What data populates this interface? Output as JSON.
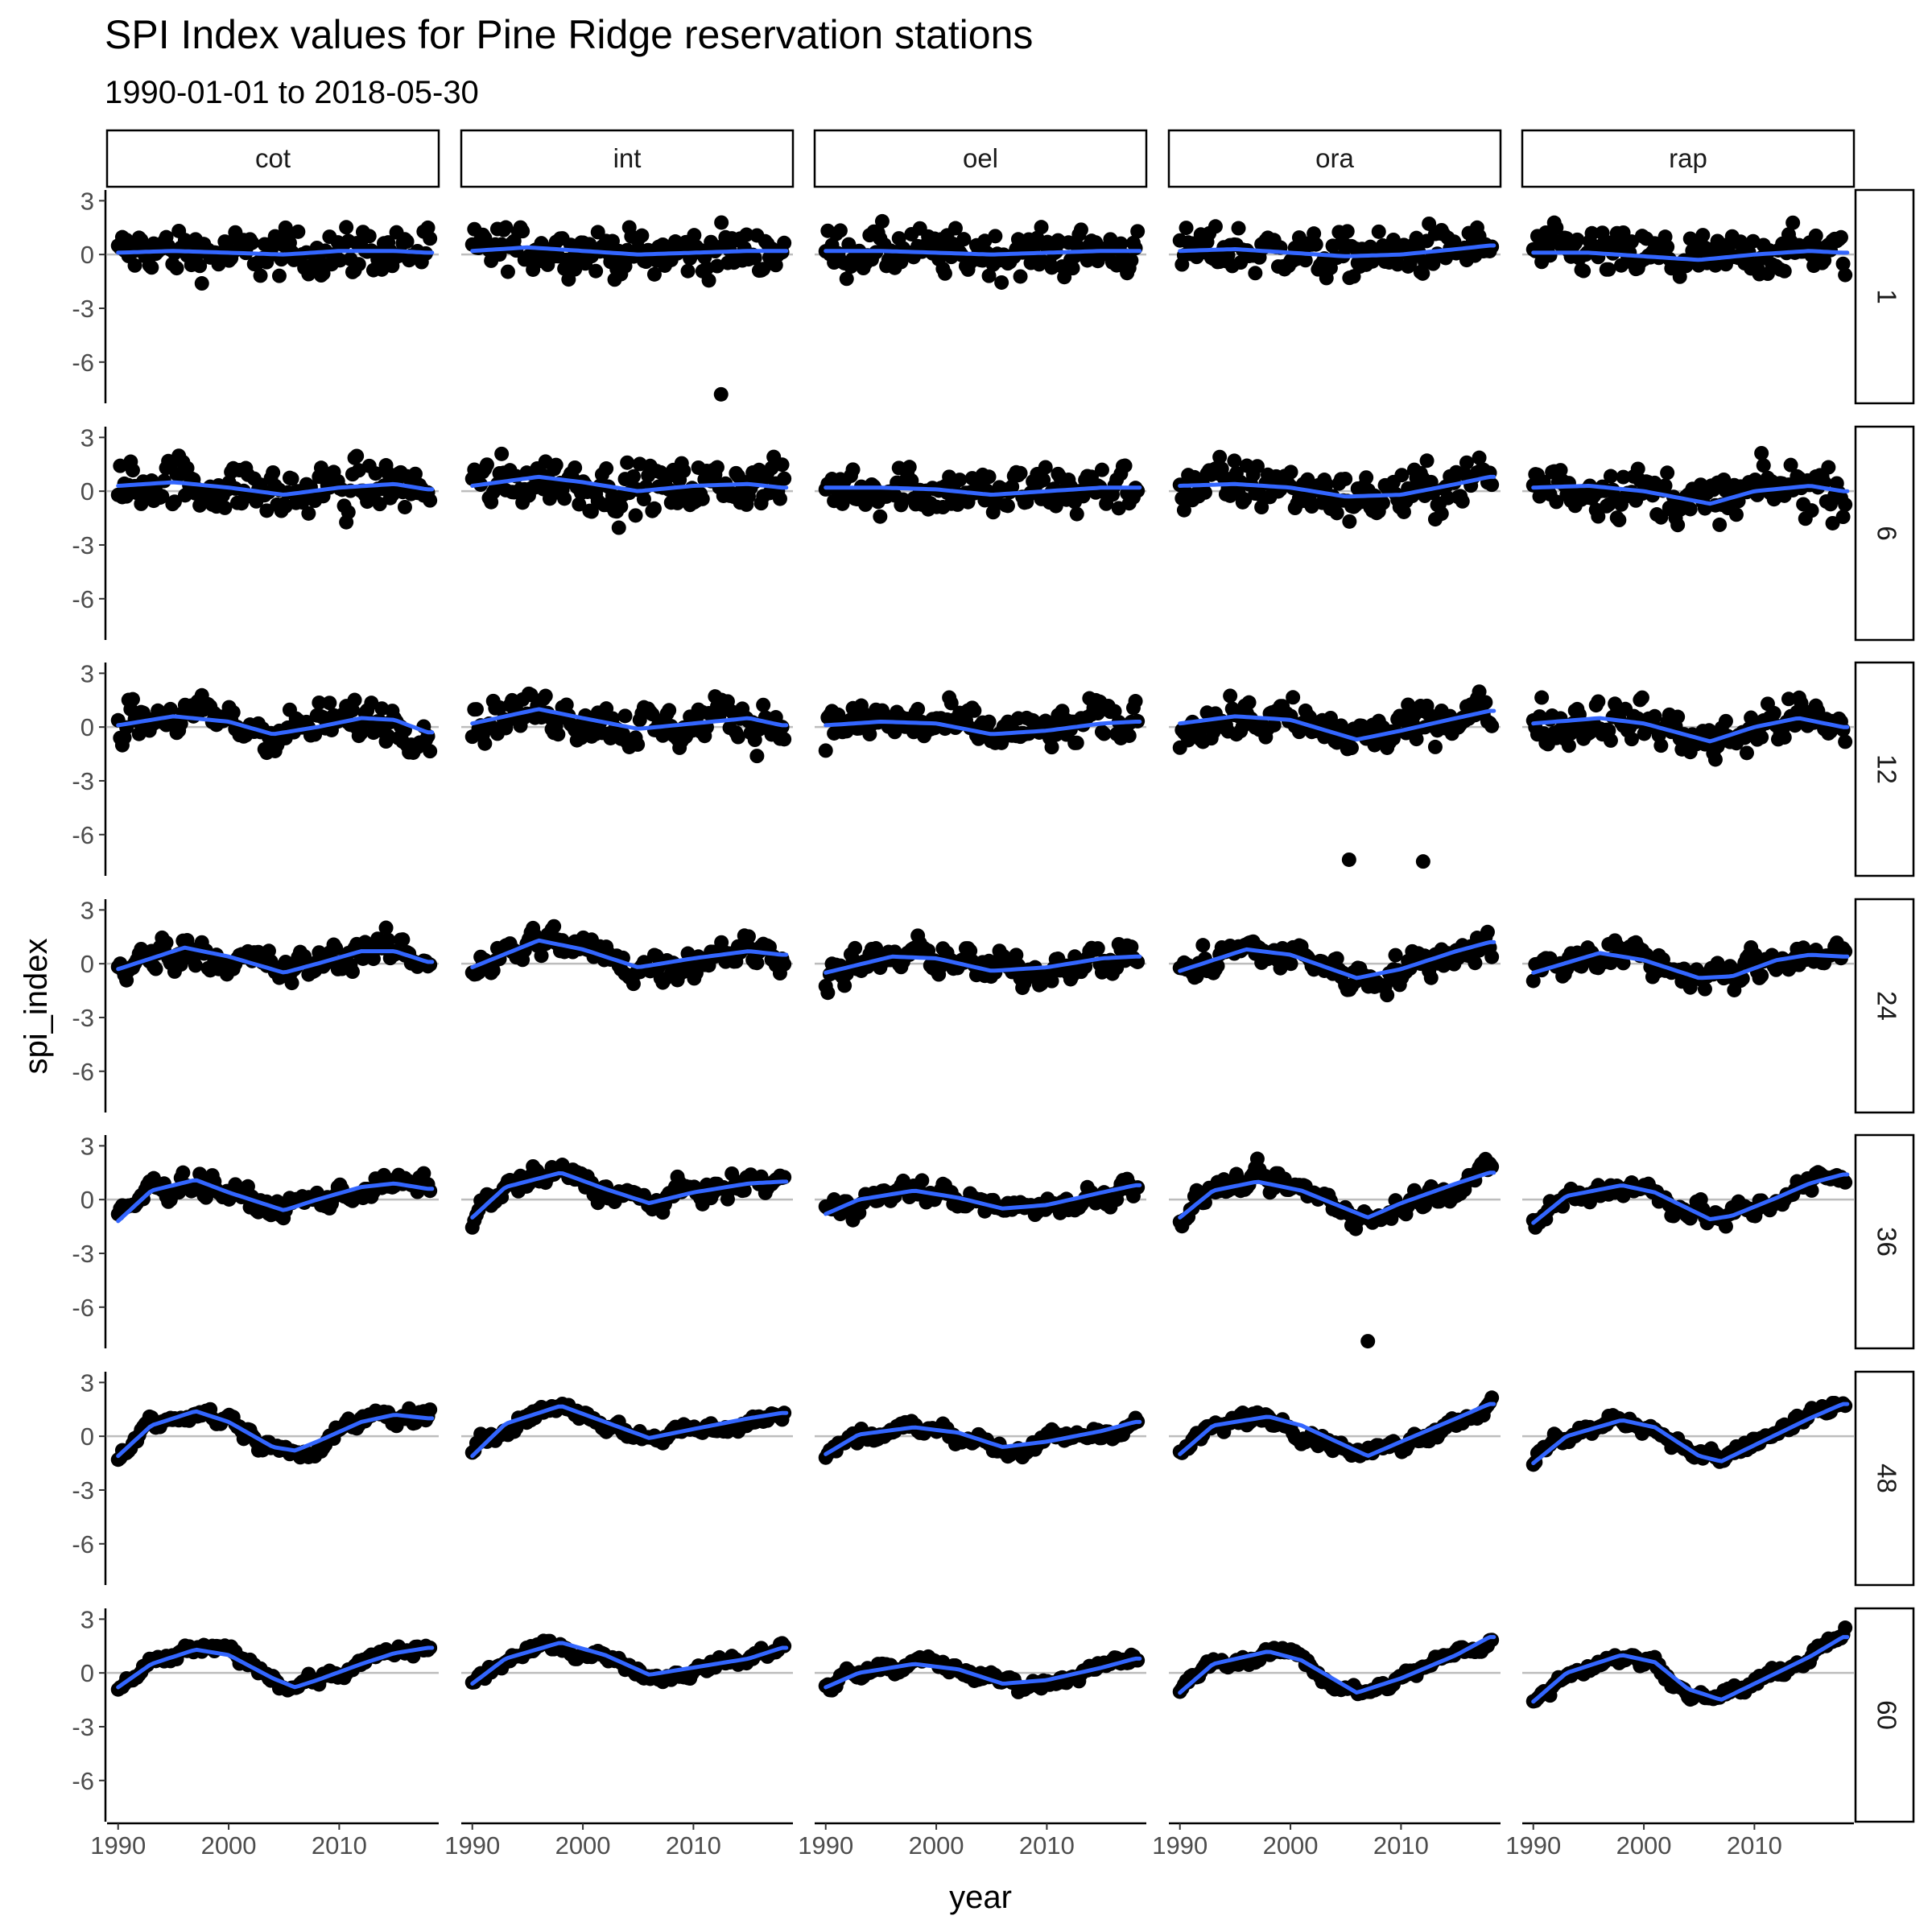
{
  "chart_data": {
    "type": "scatter",
    "title": "SPI Index values for Pine Ridge reservation stations",
    "subtitle": "1990-01-01 to 2018-05-30",
    "xlabel": "year",
    "ylabel": "spi_index",
    "xlim": [
      1989,
      2019
    ],
    "ylim": [
      -8.3,
      3.6
    ],
    "x_ticks": [
      1990,
      2000,
      2010
    ],
    "y_ticks": [
      3,
      0,
      -3,
      -6
    ],
    "reference_line_y": 0,
    "grid": false,
    "colors": {
      "points": "#000000",
      "smooth": "#3366ff",
      "reference": "#bdbdbd",
      "strip_border": "#000000"
    },
    "column_facets": [
      "cot",
      "int",
      "oel",
      "ora",
      "rap"
    ],
    "row_facets": [
      "1",
      "6",
      "12",
      "24",
      "36",
      "48",
      "60"
    ],
    "smooth_curves": {
      "1": {
        "cot": [
          [
            1990,
            0.1
          ],
          [
            1995,
            0.2
          ],
          [
            2000,
            0.1
          ],
          [
            2005,
            0.0
          ],
          [
            2010,
            0.2
          ],
          [
            2015,
            0.2
          ],
          [
            2018,
            0.1
          ]
        ],
        "int": [
          [
            1990,
            0.2
          ],
          [
            1995,
            0.4
          ],
          [
            2000,
            0.2
          ],
          [
            2005,
            0.0
          ],
          [
            2010,
            0.1
          ],
          [
            2015,
            0.2
          ],
          [
            2018,
            0.2
          ]
        ],
        "oel": [
          [
            1990,
            0.2
          ],
          [
            1995,
            0.2
          ],
          [
            2000,
            0.1
          ],
          [
            2005,
            0.0
          ],
          [
            2010,
            0.1
          ],
          [
            2015,
            0.2
          ],
          [
            2018,
            0.2
          ]
        ],
        "ora": [
          [
            1990,
            0.2
          ],
          [
            1995,
            0.3
          ],
          [
            2000,
            0.1
          ],
          [
            2005,
            -0.1
          ],
          [
            2010,
            0.0
          ],
          [
            2015,
            0.3
          ],
          [
            2018,
            0.5
          ]
        ],
        "rap": [
          [
            1990,
            0.1
          ],
          [
            1995,
            0.1
          ],
          [
            2000,
            -0.1
          ],
          [
            2005,
            -0.3
          ],
          [
            2010,
            0.0
          ],
          [
            2015,
            0.2
          ],
          [
            2018,
            0.1
          ]
        ]
      },
      "6": {
        "cot": [
          [
            1990,
            0.3
          ],
          [
            1995,
            0.5
          ],
          [
            2000,
            0.2
          ],
          [
            2005,
            -0.2
          ],
          [
            2010,
            0.2
          ],
          [
            2015,
            0.4
          ],
          [
            2018,
            0.1
          ]
        ],
        "int": [
          [
            1990,
            0.3
          ],
          [
            1996,
            0.8
          ],
          [
            2000,
            0.5
          ],
          [
            2005,
            0.0
          ],
          [
            2010,
            0.3
          ],
          [
            2015,
            0.4
          ],
          [
            2018,
            0.2
          ]
        ],
        "oel": [
          [
            1990,
            0.2
          ],
          [
            1995,
            0.2
          ],
          [
            2000,
            0.1
          ],
          [
            2005,
            -0.2
          ],
          [
            2010,
            0.0
          ],
          [
            2015,
            0.2
          ],
          [
            2018,
            0.2
          ]
        ],
        "ora": [
          [
            1990,
            0.3
          ],
          [
            1995,
            0.4
          ],
          [
            2000,
            0.2
          ],
          [
            2005,
            -0.3
          ],
          [
            2010,
            -0.2
          ],
          [
            2015,
            0.4
          ],
          [
            2018,
            0.8
          ]
        ],
        "rap": [
          [
            1990,
            0.2
          ],
          [
            1995,
            0.3
          ],
          [
            2000,
            0.0
          ],
          [
            2006,
            -0.7
          ],
          [
            2010,
            0.0
          ],
          [
            2015,
            0.3
          ],
          [
            2018,
            0.0
          ]
        ]
      },
      "12": {
        "cot": [
          [
            1990,
            0.1
          ],
          [
            1995,
            0.6
          ],
          [
            2000,
            0.3
          ],
          [
            2004,
            -0.4
          ],
          [
            2008,
            0.0
          ],
          [
            2012,
            0.5
          ],
          [
            2015,
            0.4
          ],
          [
            2018,
            -0.3
          ]
        ],
        "int": [
          [
            1990,
            0.2
          ],
          [
            1996,
            1.0
          ],
          [
            2000,
            0.5
          ],
          [
            2005,
            -0.1
          ],
          [
            2010,
            0.2
          ],
          [
            2015,
            0.5
          ],
          [
            2018,
            0.1
          ]
        ],
        "oel": [
          [
            1990,
            0.1
          ],
          [
            1995,
            0.3
          ],
          [
            2000,
            0.2
          ],
          [
            2005,
            -0.4
          ],
          [
            2010,
            -0.2
          ],
          [
            2015,
            0.2
          ],
          [
            2018,
            0.3
          ]
        ],
        "ora": [
          [
            1990,
            0.2
          ],
          [
            1995,
            0.6
          ],
          [
            2000,
            0.4
          ],
          [
            2006,
            -0.7
          ],
          [
            2010,
            -0.2
          ],
          [
            2015,
            0.5
          ],
          [
            2018,
            0.9
          ]
        ],
        "rap": [
          [
            1990,
            0.2
          ],
          [
            1996,
            0.5
          ],
          [
            2000,
            0.2
          ],
          [
            2006,
            -0.8
          ],
          [
            2010,
            0.0
          ],
          [
            2014,
            0.5
          ],
          [
            2018,
            0.0
          ]
        ]
      },
      "24": {
        "cot": [
          [
            1990,
            -0.3
          ],
          [
            1996,
            0.9
          ],
          [
            2000,
            0.4
          ],
          [
            2005,
            -0.5
          ],
          [
            2008,
            0.0
          ],
          [
            2012,
            0.7
          ],
          [
            2015,
            0.7
          ],
          [
            2018,
            0.1
          ]
        ],
        "int": [
          [
            1990,
            -0.2
          ],
          [
            1996,
            1.3
          ],
          [
            2000,
            0.8
          ],
          [
            2005,
            -0.2
          ],
          [
            2010,
            0.3
          ],
          [
            2015,
            0.7
          ],
          [
            2018,
            0.5
          ]
        ],
        "oel": [
          [
            1990,
            -0.5
          ],
          [
            1996,
            0.4
          ],
          [
            2000,
            0.3
          ],
          [
            2005,
            -0.4
          ],
          [
            2010,
            -0.2
          ],
          [
            2015,
            0.3
          ],
          [
            2018,
            0.4
          ]
        ],
        "ora": [
          [
            1990,
            -0.4
          ],
          [
            1996,
            0.8
          ],
          [
            2000,
            0.5
          ],
          [
            2006,
            -0.8
          ],
          [
            2010,
            -0.3
          ],
          [
            2015,
            0.7
          ],
          [
            2018,
            1.2
          ]
        ],
        "rap": [
          [
            1990,
            -0.5
          ],
          [
            1996,
            0.6
          ],
          [
            2000,
            0.2
          ],
          [
            2005,
            -0.8
          ],
          [
            2008,
            -0.7
          ],
          [
            2012,
            0.2
          ],
          [
            2015,
            0.5
          ],
          [
            2018,
            0.4
          ]
        ]
      },
      "36": {
        "cot": [
          [
            1990,
            -1.2
          ],
          [
            1993,
            0.5
          ],
          [
            1997,
            1.1
          ],
          [
            2000,
            0.4
          ],
          [
            2005,
            -0.6
          ],
          [
            2008,
            0.0
          ],
          [
            2012,
            0.7
          ],
          [
            2015,
            0.9
          ],
          [
            2018,
            0.6
          ]
        ],
        "int": [
          [
            1990,
            -1.0
          ],
          [
            1993,
            0.7
          ],
          [
            1998,
            1.5
          ],
          [
            2002,
            0.6
          ],
          [
            2006,
            -0.2
          ],
          [
            2010,
            0.4
          ],
          [
            2015,
            0.9
          ],
          [
            2018,
            1.0
          ]
        ],
        "oel": [
          [
            1990,
            -0.8
          ],
          [
            1993,
            0.0
          ],
          [
            1998,
            0.5
          ],
          [
            2002,
            0.1
          ],
          [
            2006,
            -0.5
          ],
          [
            2010,
            -0.3
          ],
          [
            2015,
            0.4
          ],
          [
            2018,
            0.8
          ]
        ],
        "ora": [
          [
            1990,
            -1.0
          ],
          [
            1993,
            0.5
          ],
          [
            1997,
            1.0
          ],
          [
            2001,
            0.5
          ],
          [
            2007,
            -1.0
          ],
          [
            2010,
            -0.2
          ],
          [
            2015,
            0.9
          ],
          [
            2018,
            1.5
          ]
        ],
        "rap": [
          [
            1990,
            -1.3
          ],
          [
            1993,
            0.2
          ],
          [
            1998,
            0.8
          ],
          [
            2001,
            0.4
          ],
          [
            2006,
            -1.1
          ],
          [
            2008,
            -0.9
          ],
          [
            2012,
            0.1
          ],
          [
            2015,
            0.9
          ],
          [
            2018,
            1.4
          ]
        ]
      },
      "48": {
        "cot": [
          [
            1990,
            -1.1
          ],
          [
            1993,
            0.6
          ],
          [
            1997,
            1.4
          ],
          [
            2000,
            0.8
          ],
          [
            2004,
            -0.6
          ],
          [
            2006,
            -0.8
          ],
          [
            2008,
            -0.3
          ],
          [
            2012,
            0.8
          ],
          [
            2015,
            1.2
          ],
          [
            2018,
            1.0
          ]
        ],
        "int": [
          [
            1990,
            -1.1
          ],
          [
            1993,
            0.7
          ],
          [
            1998,
            1.7
          ],
          [
            2002,
            0.8
          ],
          [
            2006,
            -0.1
          ],
          [
            2010,
            0.4
          ],
          [
            2015,
            1.0
          ],
          [
            2018,
            1.3
          ]
        ],
        "oel": [
          [
            1990,
            -1.0
          ],
          [
            1993,
            0.1
          ],
          [
            1998,
            0.5
          ],
          [
            2002,
            0.2
          ],
          [
            2006,
            -0.6
          ],
          [
            2010,
            -0.3
          ],
          [
            2015,
            0.3
          ],
          [
            2018,
            0.8
          ]
        ],
        "ora": [
          [
            1990,
            -1.0
          ],
          [
            1993,
            0.6
          ],
          [
            1998,
            1.1
          ],
          [
            2001,
            0.6
          ],
          [
            2007,
            -1.1
          ],
          [
            2010,
            -0.3
          ],
          [
            2015,
            1.0
          ],
          [
            2018,
            1.8
          ]
        ],
        "rap": [
          [
            1990,
            -1.5
          ],
          [
            1993,
            0.0
          ],
          [
            1998,
            0.9
          ],
          [
            2001,
            0.5
          ],
          [
            2005,
            -1.1
          ],
          [
            2007,
            -1.4
          ],
          [
            2010,
            -0.5
          ],
          [
            2015,
            1.0
          ],
          [
            2018,
            1.8
          ]
        ]
      },
      "60": {
        "cot": [
          [
            1990,
            -0.8
          ],
          [
            1993,
            0.5
          ],
          [
            1997,
            1.3
          ],
          [
            2000,
            1.0
          ],
          [
            2004,
            -0.3
          ],
          [
            2006,
            -0.8
          ],
          [
            2008,
            -0.4
          ],
          [
            2012,
            0.5
          ],
          [
            2015,
            1.1
          ],
          [
            2018,
            1.4
          ]
        ],
        "int": [
          [
            1990,
            -0.6
          ],
          [
            1993,
            0.8
          ],
          [
            1998,
            1.7
          ],
          [
            2002,
            1.0
          ],
          [
            2006,
            -0.1
          ],
          [
            2010,
            0.3
          ],
          [
            2015,
            0.8
          ],
          [
            2018,
            1.4
          ]
        ],
        "oel": [
          [
            1990,
            -0.8
          ],
          [
            1993,
            0.0
          ],
          [
            1998,
            0.5
          ],
          [
            2002,
            0.2
          ],
          [
            2006,
            -0.6
          ],
          [
            2010,
            -0.4
          ],
          [
            2015,
            0.3
          ],
          [
            2018,
            0.8
          ]
        ],
        "ora": [
          [
            1990,
            -1.1
          ],
          [
            1993,
            0.5
          ],
          [
            1998,
            1.2
          ],
          [
            2001,
            0.7
          ],
          [
            2006,
            -1.1
          ],
          [
            2010,
            -0.3
          ],
          [
            2015,
            1.0
          ],
          [
            2018,
            2.0
          ]
        ],
        "rap": [
          [
            1990,
            -1.6
          ],
          [
            1993,
            0.0
          ],
          [
            1998,
            1.0
          ],
          [
            2001,
            0.6
          ],
          [
            2004,
            -0.9
          ],
          [
            2007,
            -1.5
          ],
          [
            2010,
            -0.6
          ],
          [
            2015,
            0.9
          ],
          [
            2018,
            2.0
          ]
        ]
      }
    },
    "outliers": [
      {
        "row": "1",
        "col": "int",
        "x": 2012.5,
        "y": -7.8
      },
      {
        "row": "12",
        "col": "ora",
        "x": 2005.3,
        "y": -7.4
      },
      {
        "row": "12",
        "col": "ora",
        "x": 2012.0,
        "y": -7.5
      },
      {
        "row": "36",
        "col": "ora",
        "x": 2007.0,
        "y": -7.9
      }
    ]
  }
}
